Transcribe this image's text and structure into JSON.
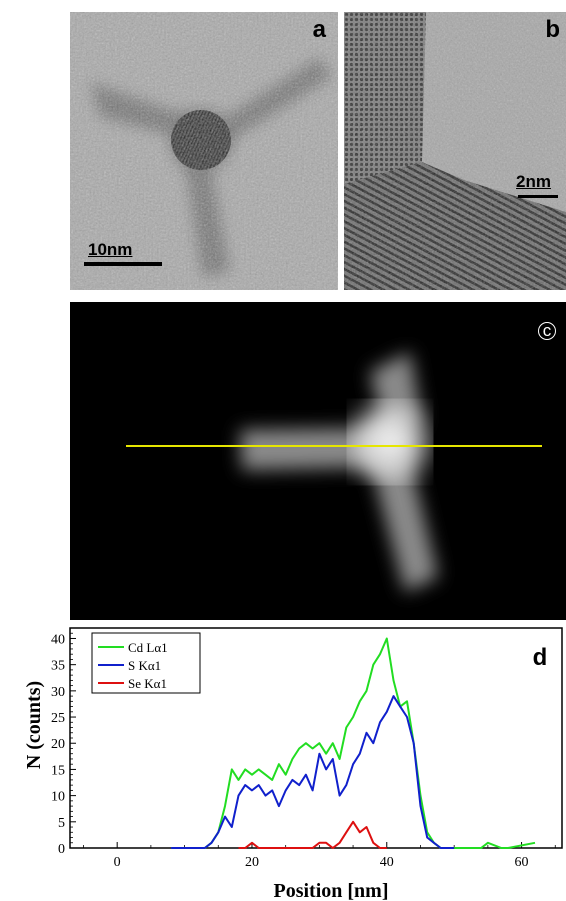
{
  "panels": {
    "a": {
      "label": "a",
      "scale_bar": "10nm"
    },
    "b": {
      "label": "b",
      "scale_bar": "2nm"
    },
    "c": {
      "label": "c"
    },
    "d": {
      "label": "d"
    }
  },
  "colors": {
    "cd": "#22dd22",
    "s": "#1020cc",
    "se": "#dd1010",
    "scan_line": "#e6e600"
  },
  "chart_data": {
    "type": "line",
    "title": "",
    "xlabel": "Position [nm]",
    "ylabel": "N (counts)",
    "xlim": [
      -7,
      66
    ],
    "ylim": [
      0,
      42
    ],
    "xticks": [
      0,
      20,
      40,
      60
    ],
    "yticks": [
      0,
      5,
      10,
      15,
      20,
      25,
      30,
      35,
      40
    ],
    "legend_position": "top-left",
    "series": [
      {
        "name": "Cd Lα1",
        "color": "#22dd22",
        "x": [
          8,
          12,
          13,
          14,
          15,
          16,
          17,
          18,
          19,
          20,
          21,
          22,
          23,
          24,
          25,
          26,
          27,
          28,
          29,
          30,
          31,
          32,
          33,
          34,
          35,
          36,
          37,
          38,
          39,
          40,
          41,
          42,
          43,
          44,
          45,
          46,
          47,
          48,
          50,
          54,
          55,
          57,
          58,
          62
        ],
        "y": [
          0,
          0,
          0,
          1,
          3,
          8,
          15,
          13,
          15,
          14,
          15,
          14,
          13,
          16,
          14,
          17,
          19,
          20,
          19,
          20,
          18,
          20,
          17,
          23,
          25,
          28,
          30,
          35,
          37,
          40,
          32,
          27,
          28,
          20,
          10,
          3,
          1,
          0,
          0,
          0,
          1,
          0,
          0,
          1
        ]
      },
      {
        "name": "S Kα1",
        "color": "#1020cc",
        "x": [
          8,
          12,
          13,
          14,
          15,
          16,
          17,
          18,
          19,
          20,
          21,
          22,
          23,
          24,
          25,
          26,
          27,
          28,
          29,
          30,
          31,
          32,
          33,
          34,
          35,
          36,
          37,
          38,
          39,
          40,
          41,
          42,
          43,
          44,
          45,
          46,
          47,
          48,
          50
        ],
        "y": [
          0,
          0,
          0,
          1,
          3,
          6,
          4,
          10,
          12,
          11,
          12,
          10,
          11,
          8,
          11,
          13,
          12,
          14,
          11,
          18,
          15,
          17,
          10,
          12,
          16,
          18,
          22,
          20,
          24,
          26,
          29,
          27,
          25,
          20,
          8,
          2,
          1,
          0,
          0
        ]
      },
      {
        "name": "Se Kα1",
        "color": "#dd1010",
        "x": [
          18,
          19,
          20,
          21,
          22,
          29,
          30,
          31,
          32,
          33,
          34,
          35,
          36,
          37,
          38,
          39,
          40
        ],
        "y": [
          0,
          0,
          1,
          0,
          0,
          0,
          1,
          1,
          0,
          1,
          3,
          5,
          3,
          4,
          1,
          0,
          0
        ]
      }
    ]
  }
}
